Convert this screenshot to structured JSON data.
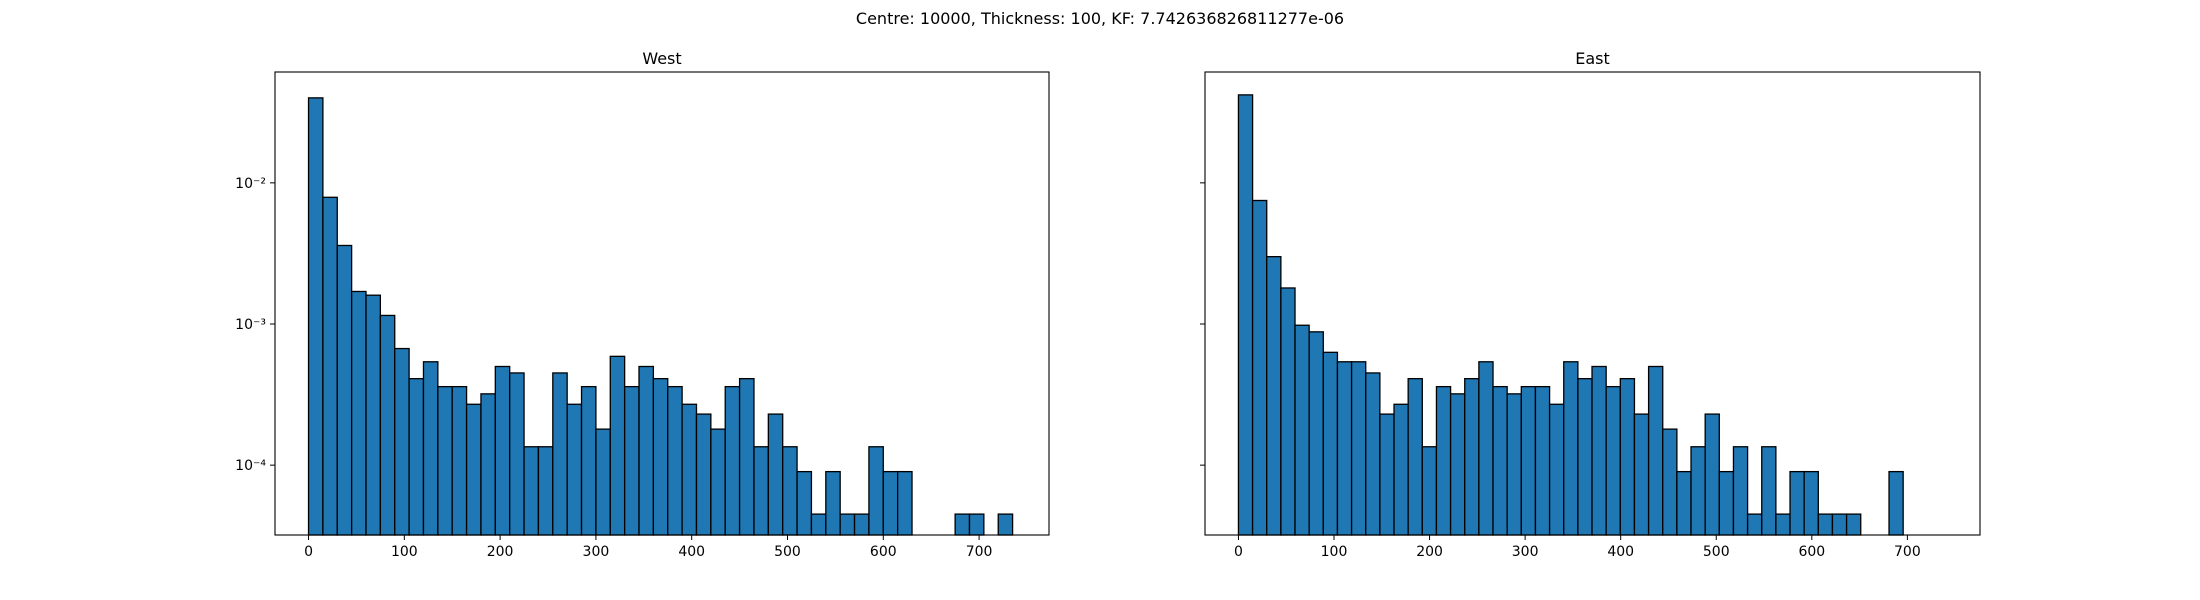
{
  "title": "Centre: 10000, Thickness: 100, KF: 7.742636826811277e-06",
  "chart_data": [
    {
      "type": "histogram",
      "title": "West",
      "color": "#1f77b4",
      "edgecolor": "#000000",
      "yscale": "log",
      "bins": [
        0,
        15,
        30,
        45,
        60,
        75,
        90,
        105,
        120,
        135,
        150,
        165,
        180,
        195,
        210,
        225,
        240,
        255,
        270,
        285,
        300,
        315,
        330,
        345,
        360,
        375,
        390,
        405,
        420,
        435,
        450,
        465,
        480,
        495,
        510,
        525,
        540,
        555,
        570,
        585,
        600,
        615,
        630,
        645,
        660,
        675,
        690,
        705,
        720,
        735,
        750
      ],
      "counts": [
        0.04,
        0.0079,
        0.0036,
        0.0017,
        0.0016,
        0.00115,
        0.00067,
        0.00041,
        0.00054,
        0.00036,
        0.00036,
        0.00027,
        0.00032,
        0.0005,
        0.00045,
        0.000135,
        0.000135,
        0.00045,
        0.00027,
        0.00036,
        0.00018,
        0.00059,
        0.00036,
        0.0005,
        0.00041,
        0.00036,
        0.00027,
        0.00023,
        0.00018,
        0.00036,
        0.00041,
        0.000135,
        0.00023,
        0.000135,
        9e-05,
        4.5e-05,
        9e-05,
        4.5e-05,
        4.5e-05,
        0.000135,
        9e-05,
        9e-05,
        0,
        0,
        0,
        4.5e-05,
        4.5e-05,
        0,
        4.5e-05,
        0
      ],
      "xlim": [
        -35,
        773
      ],
      "xticks": [
        0,
        100,
        200,
        300,
        400,
        500,
        600,
        700
      ],
      "ylim": [
        3.2e-05,
        0.061
      ],
      "yticks": [
        {
          "value": 0.0001,
          "label": "10⁻⁴"
        },
        {
          "value": 0.001,
          "label": "10⁻³"
        },
        {
          "value": 0.01,
          "label": "10⁻²"
        }
      ]
    },
    {
      "type": "histogram",
      "title": "East",
      "color": "#1f77b4",
      "edgecolor": "#000000",
      "yscale": "log",
      "bins": [
        0,
        14.8,
        29.6,
        44.4,
        59.2,
        74,
        88.8,
        103.6,
        118.4,
        133.2,
        148,
        162.8,
        177.6,
        192.4,
        207.2,
        222,
        236.8,
        251.6,
        266.4,
        281.2,
        296,
        310.8,
        325.6,
        340.4,
        355.2,
        370,
        384.8,
        399.6,
        414.4,
        429.2,
        444,
        458.8,
        473.6,
        488.4,
        503.2,
        518,
        532.8,
        547.6,
        562.4,
        577.2,
        592,
        606.8,
        621.6,
        636.4,
        651.2,
        666,
        680.8,
        695.6
      ],
      "counts": [
        0.042,
        0.0075,
        0.003,
        0.0018,
        0.00098,
        0.00088,
        0.00063,
        0.00054,
        0.00054,
        0.00045,
        0.00023,
        0.00027,
        0.00041,
        0.000135,
        0.00036,
        0.00032,
        0.00041,
        0.00054,
        0.00036,
        0.00032,
        0.00036,
        0.00036,
        0.00027,
        0.00054,
        0.00041,
        0.0005,
        0.00036,
        0.00041,
        0.00023,
        0.0005,
        0.00018,
        9e-05,
        0.000135,
        0.00023,
        9e-05,
        0.000135,
        4.5e-05,
        0.000135,
        4.5e-05,
        9e-05,
        9e-05,
        4.5e-05,
        4.5e-05,
        4.5e-05,
        0,
        0,
        9e-05
      ],
      "xlim": [
        -35,
        776
      ],
      "xticks": [
        0,
        100,
        200,
        300,
        400,
        500,
        600,
        700
      ],
      "ylim": [
        3.2e-05,
        0.061
      ],
      "yticks": [
        0.0001,
        0.001,
        0.01
      ]
    }
  ]
}
